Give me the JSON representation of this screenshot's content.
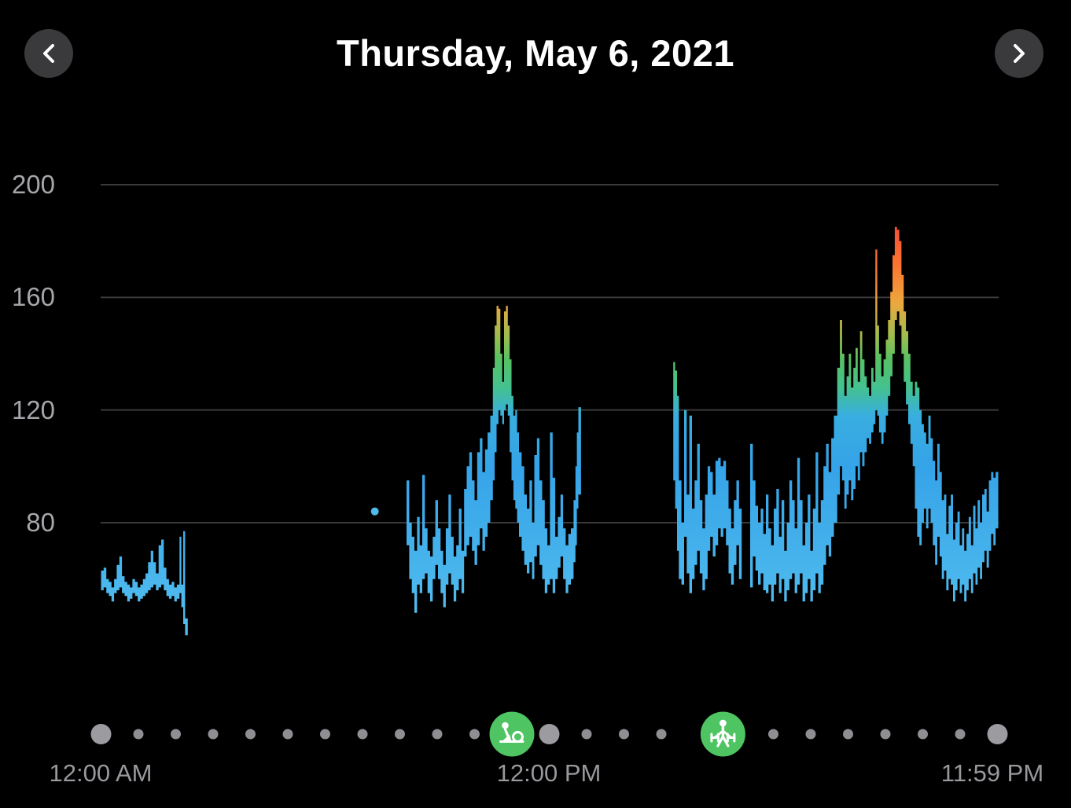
{
  "header": {
    "title": "Thursday, May 6, 2021"
  },
  "colors": {
    "background": "#000000",
    "nav_button_bg": "#3a3a3c",
    "grid_line": "#3a3a3c",
    "label_gray": "#a5a5aa",
    "xlabel_gray": "#98989d",
    "dot_small": "#8e8e93",
    "dot_large": "#9b9ba0",
    "workout_green": "#4fc463",
    "isolated_dot": "#4fb9ec",
    "icon_white": "#ffffff"
  },
  "chart_data": {
    "type": "area",
    "subtype": "heart-rate-range-over-day",
    "title": "Thursday, May 6, 2021",
    "xlabel": "",
    "ylabel": "",
    "x_axis": {
      "hours_range": [
        0,
        24
      ],
      "labels": [
        "12:00 AM",
        "12:00 PM",
        "11:59 PM"
      ]
    },
    "y_axis": {
      "ticks": [
        200,
        160,
        120,
        80
      ],
      "range_shown": [
        40,
        210
      ],
      "grid": "on"
    },
    "legend": "none",
    "color_scale": [
      {
        "bpm": 200,
        "color": "#fb3a30"
      },
      {
        "bpm": 186,
        "color": "#f44d38"
      },
      {
        "bpm": 172,
        "color": "#f9742f"
      },
      {
        "bpm": 158,
        "color": "#eda83d"
      },
      {
        "bpm": 146,
        "color": "#9cbc4e"
      },
      {
        "bpm": 138,
        "color": "#57c163"
      },
      {
        "bpm": 128,
        "color": "#44c18f"
      },
      {
        "bpm": 118,
        "color": "#38aee0"
      },
      {
        "bpm": 100,
        "color": "#35a3e8"
      },
      {
        "bpm": 50,
        "color": "#4fbbee"
      }
    ],
    "isolated_point": {
      "t": 7.33,
      "bpm": 84
    },
    "workouts": [
      {
        "type": "rower",
        "t": 11.0
      },
      {
        "type": "strength-training",
        "t": 16.65
      }
    ],
    "segments": [
      [
        [
          0.0,
          56,
          63
        ],
        [
          0.07,
          57,
          64
        ],
        [
          0.14,
          55,
          60
        ],
        [
          0.21,
          54,
          59
        ],
        [
          0.28,
          52,
          57
        ],
        [
          0.35,
          55,
          60
        ],
        [
          0.42,
          56,
          65
        ],
        [
          0.49,
          57,
          68
        ],
        [
          0.56,
          55,
          61
        ],
        [
          0.63,
          54,
          59
        ],
        [
          0.7,
          52,
          58
        ],
        [
          0.77,
          53,
          57
        ],
        [
          0.84,
          55,
          60
        ],
        [
          0.91,
          54,
          59
        ],
        [
          0.98,
          52,
          57
        ],
        [
          1.05,
          53,
          58
        ],
        [
          1.12,
          54,
          60
        ],
        [
          1.19,
          55,
          62
        ],
        [
          1.26,
          56,
          66
        ],
        [
          1.33,
          57,
          70
        ],
        [
          1.4,
          58,
          66
        ],
        [
          1.47,
          56,
          62
        ],
        [
          1.54,
          57,
          72
        ],
        [
          1.61,
          58,
          74
        ],
        [
          1.68,
          56,
          64
        ],
        [
          1.75,
          54,
          60
        ],
        [
          1.82,
          53,
          58
        ],
        [
          1.89,
          54,
          59
        ],
        [
          1.96,
          52,
          57
        ],
        [
          2.03,
          53,
          58
        ],
        [
          2.1,
          55,
          75
        ],
        [
          2.15,
          50,
          58
        ],
        [
          2.2,
          44,
          77
        ],
        [
          2.25,
          40,
          46
        ]
      ],
      [
        [
          8.18,
          72,
          95
        ],
        [
          8.25,
          60,
          80
        ],
        [
          8.32,
          55,
          75
        ],
        [
          8.39,
          48,
          70
        ],
        [
          8.46,
          58,
          82
        ],
        [
          8.53,
          55,
          72
        ],
        [
          8.6,
          60,
          97
        ],
        [
          8.67,
          62,
          78
        ],
        [
          8.74,
          55,
          70
        ],
        [
          8.81,
          52,
          68
        ],
        [
          8.88,
          60,
          75
        ],
        [
          8.95,
          65,
          88
        ],
        [
          9.02,
          60,
          78
        ],
        [
          9.09,
          55,
          70
        ],
        [
          9.16,
          50,
          65
        ],
        [
          9.23,
          58,
          78
        ],
        [
          9.3,
          62,
          90
        ],
        [
          9.37,
          58,
          75
        ],
        [
          9.44,
          52,
          68
        ],
        [
          9.51,
          56,
          72
        ],
        [
          9.58,
          60,
          85
        ],
        [
          9.65,
          55,
          70
        ],
        [
          9.72,
          68,
          92
        ],
        [
          9.79,
          72,
          100
        ],
        [
          9.86,
          75,
          105
        ],
        [
          9.93,
          70,
          95
        ],
        [
          10.0,
          65,
          88
        ],
        [
          10.07,
          72,
          105
        ],
        [
          10.14,
          78,
          110
        ],
        [
          10.21,
          70,
          98
        ],
        [
          10.28,
          75,
          106
        ],
        [
          10.35,
          80,
          112
        ],
        [
          10.42,
          88,
          118
        ],
        [
          10.49,
          95,
          135
        ],
        [
          10.54,
          105,
          150
        ],
        [
          10.59,
          115,
          157
        ],
        [
          10.64,
          120,
          156
        ],
        [
          10.69,
          118,
          140
        ],
        [
          10.74,
          115,
          130
        ],
        [
          10.79,
          120,
          155
        ],
        [
          10.84,
          122,
          157
        ],
        [
          10.89,
          118,
          150
        ],
        [
          10.94,
          105,
          138
        ],
        [
          10.99,
          95,
          125
        ],
        [
          11.04,
          88,
          118
        ],
        [
          11.09,
          85,
          120
        ],
        [
          11.14,
          80,
          112
        ],
        [
          11.19,
          75,
          105
        ],
        [
          11.26,
          70,
          100
        ],
        [
          11.33,
          65,
          90
        ],
        [
          11.4,
          62,
          85
        ],
        [
          11.47,
          66,
          95
        ],
        [
          11.54,
          60,
          80
        ],
        [
          11.6,
          68,
          104
        ],
        [
          11.67,
          72,
          110
        ],
        [
          11.74,
          65,
          95
        ],
        [
          11.81,
          60,
          88
        ],
        [
          11.88,
          55,
          78
        ],
        [
          11.95,
          58,
          72
        ],
        [
          12.02,
          60,
          112
        ],
        [
          12.09,
          55,
          96
        ],
        [
          12.16,
          60,
          75
        ],
        [
          12.23,
          64,
          82
        ],
        [
          12.3,
          68,
          90
        ],
        [
          12.37,
          60,
          78
        ],
        [
          12.44,
          55,
          72
        ],
        [
          12.51,
          58,
          76
        ],
        [
          12.58,
          60,
          78
        ],
        [
          12.65,
          66,
          88
        ],
        [
          12.7,
          72,
          100
        ],
        [
          12.74,
          85,
          112
        ],
        [
          12.78,
          90,
          121
        ]
      ],
      [
        [
          15.32,
          95,
          137
        ],
        [
          15.37,
          85,
          134
        ],
        [
          15.42,
          70,
          125
        ],
        [
          15.47,
          60,
          95
        ],
        [
          15.54,
          58,
          80
        ],
        [
          15.61,
          75,
          120
        ],
        [
          15.68,
          62,
          90
        ],
        [
          15.75,
          55,
          118
        ],
        [
          15.82,
          60,
          85
        ],
        [
          15.89,
          65,
          95
        ],
        [
          15.96,
          70,
          108
        ],
        [
          16.03,
          62,
          88
        ],
        [
          16.1,
          56,
          78
        ],
        [
          16.17,
          60,
          90
        ],
        [
          16.24,
          70,
          100
        ],
        [
          16.31,
          75,
          98
        ],
        [
          16.38,
          68,
          90
        ],
        [
          16.45,
          72,
          102
        ],
        [
          16.52,
          78,
          103
        ],
        [
          16.59,
          75,
          100
        ],
        [
          16.66,
          78,
          102
        ],
        [
          16.73,
          72,
          95
        ],
        [
          16.8,
          62,
          85
        ],
        [
          16.87,
          58,
          78
        ],
        [
          16.94,
          65,
          88
        ],
        [
          17.01,
          72,
          95
        ],
        [
          17.08,
          60,
          85
        ]
      ],
      [
        [
          17.38,
          57,
          108
        ],
        [
          17.45,
          68,
          95
        ],
        [
          17.52,
          63,
          86
        ],
        [
          17.59,
          58,
          80
        ],
        [
          17.66,
          62,
          85
        ],
        [
          17.73,
          56,
          76
        ],
        [
          17.8,
          55,
          90
        ],
        [
          17.87,
          58,
          78
        ],
        [
          17.94,
          52,
          72
        ],
        [
          18.01,
          58,
          85
        ],
        [
          18.08,
          62,
          92
        ],
        [
          18.15,
          55,
          75
        ],
        [
          18.22,
          60,
          88
        ],
        [
          18.29,
          52,
          70
        ],
        [
          18.36,
          56,
          80
        ],
        [
          18.43,
          60,
          95
        ],
        [
          18.5,
          62,
          88
        ],
        [
          18.57,
          55,
          78
        ],
        [
          18.64,
          58,
          103
        ],
        [
          18.71,
          62,
          88
        ],
        [
          18.78,
          52,
          72
        ],
        [
          18.85,
          55,
          80
        ],
        [
          18.92,
          60,
          90
        ],
        [
          18.99,
          52,
          70
        ],
        [
          19.06,
          56,
          85
        ],
        [
          19.13,
          62,
          105
        ],
        [
          19.2,
          55,
          80
        ],
        [
          19.27,
          58,
          88
        ],
        [
          19.34,
          65,
          100
        ],
        [
          19.41,
          72,
          108
        ],
        [
          19.48,
          68,
          98
        ],
        [
          19.55,
          75,
          110
        ],
        [
          19.62,
          80,
          118
        ],
        [
          19.71,
          90,
          135
        ],
        [
          19.78,
          100,
          152
        ],
        [
          19.84,
          95,
          140
        ],
        [
          19.9,
          85,
          125
        ],
        [
          19.96,
          90,
          132
        ],
        [
          20.02,
          95,
          140
        ],
        [
          20.08,
          88,
          128
        ],
        [
          20.14,
          92,
          135
        ],
        [
          20.2,
          100,
          142
        ],
        [
          20.26,
          95,
          130
        ],
        [
          20.32,
          105,
          148
        ],
        [
          20.38,
          100,
          138
        ],
        [
          20.44,
          105,
          132
        ],
        [
          20.5,
          110,
          128
        ],
        [
          20.56,
          108,
          125
        ],
        [
          20.62,
          112,
          135
        ],
        [
          20.68,
          115,
          130
        ],
        [
          20.73,
          120,
          177
        ],
        [
          20.78,
          118,
          150
        ],
        [
          20.83,
          112,
          140
        ],
        [
          20.89,
          108,
          132
        ],
        [
          20.95,
          112,
          138
        ],
        [
          21.01,
          118,
          145
        ],
        [
          21.07,
          125,
          152
        ],
        [
          21.13,
          132,
          162
        ],
        [
          21.19,
          140,
          175
        ],
        [
          21.25,
          152,
          185
        ],
        [
          21.31,
          155,
          184
        ],
        [
          21.37,
          150,
          180
        ],
        [
          21.43,
          140,
          168
        ],
        [
          21.49,
          130,
          155
        ],
        [
          21.55,
          122,
          148
        ],
        [
          21.61,
          115,
          140
        ],
        [
          21.67,
          108,
          130
        ],
        [
          21.73,
          100,
          125
        ],
        [
          21.79,
          85,
          130
        ],
        [
          21.85,
          75,
          128
        ],
        [
          21.91,
          72,
          120
        ],
        [
          21.97,
          80,
          115
        ],
        [
          22.03,
          85,
          112
        ],
        [
          22.09,
          78,
          108
        ],
        [
          22.15,
          85,
          118
        ],
        [
          22.21,
          80,
          110
        ],
        [
          22.27,
          72,
          102
        ],
        [
          22.33,
          65,
          95
        ],
        [
          22.39,
          75,
          108
        ],
        [
          22.45,
          68,
          98
        ],
        [
          22.51,
          60,
          88
        ],
        [
          22.57,
          63,
          90
        ],
        [
          22.63,
          56,
          76
        ],
        [
          22.69,
          60,
          86
        ],
        [
          22.75,
          58,
          90
        ],
        [
          22.81,
          52,
          74
        ],
        [
          22.87,
          56,
          80
        ],
        [
          22.93,
          60,
          84
        ],
        [
          22.99,
          55,
          72
        ],
        [
          23.05,
          58,
          78
        ],
        [
          23.11,
          52,
          70
        ],
        [
          23.17,
          56,
          76
        ],
        [
          23.23,
          60,
          82
        ],
        [
          23.29,
          55,
          72
        ],
        [
          23.35,
          62,
          86
        ],
        [
          23.41,
          58,
          78
        ],
        [
          23.47,
          64,
          88
        ],
        [
          23.53,
          60,
          80
        ],
        [
          23.59,
          66,
          90
        ],
        [
          23.65,
          70,
          92
        ],
        [
          23.71,
          64,
          84
        ],
        [
          23.77,
          70,
          95
        ],
        [
          23.83,
          76,
          98
        ],
        [
          23.89,
          72,
          96
        ],
        [
          23.95,
          78,
          98
        ]
      ]
    ]
  },
  "timeline": {
    "dot_count": 25,
    "large_slots": [
      0,
      12,
      24
    ]
  }
}
